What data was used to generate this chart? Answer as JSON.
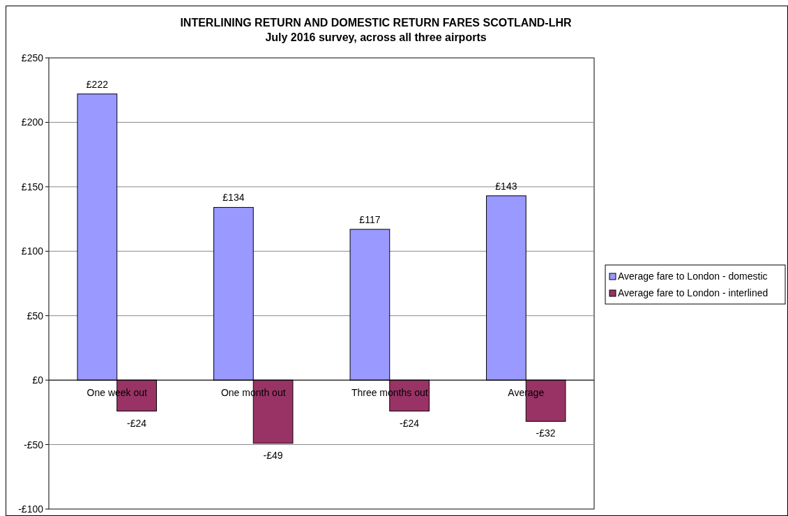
{
  "chart_data": {
    "type": "bar",
    "title": "INTERLINING RETURN AND DOMESTIC RETURN FARES  SCOTLAND-LHR",
    "subtitle": "July 2016 survey, across all three airports",
    "categories": [
      "One week out",
      "One month out",
      "Three months out",
      "Average"
    ],
    "series": [
      {
        "name": "Average fare to London - domestic",
        "color": "#9999ff",
        "values": [
          222,
          134,
          117,
          143
        ],
        "value_labels": [
          "£222",
          "£134",
          "£117",
          "£143"
        ]
      },
      {
        "name": "Average fare to London - interlined",
        "color": "#993366",
        "values": [
          -24,
          -49,
          -24,
          -32
        ],
        "value_labels": [
          "-£24",
          "-£49",
          "-£24",
          "-£32"
        ]
      }
    ],
    "ylim": [
      -100,
      250
    ],
    "yticks": [
      {
        "value": -100,
        "label": "-£100"
      },
      {
        "value": -50,
        "label": "-£50"
      },
      {
        "value": 0,
        "label": "£0"
      },
      {
        "value": 50,
        "label": "£50"
      },
      {
        "value": 100,
        "label": "£100"
      },
      {
        "value": 150,
        "label": "£150"
      },
      {
        "value": 200,
        "label": "£200"
      },
      {
        "value": 250,
        "label": "£250"
      }
    ],
    "grid": "y",
    "legend": "right"
  }
}
